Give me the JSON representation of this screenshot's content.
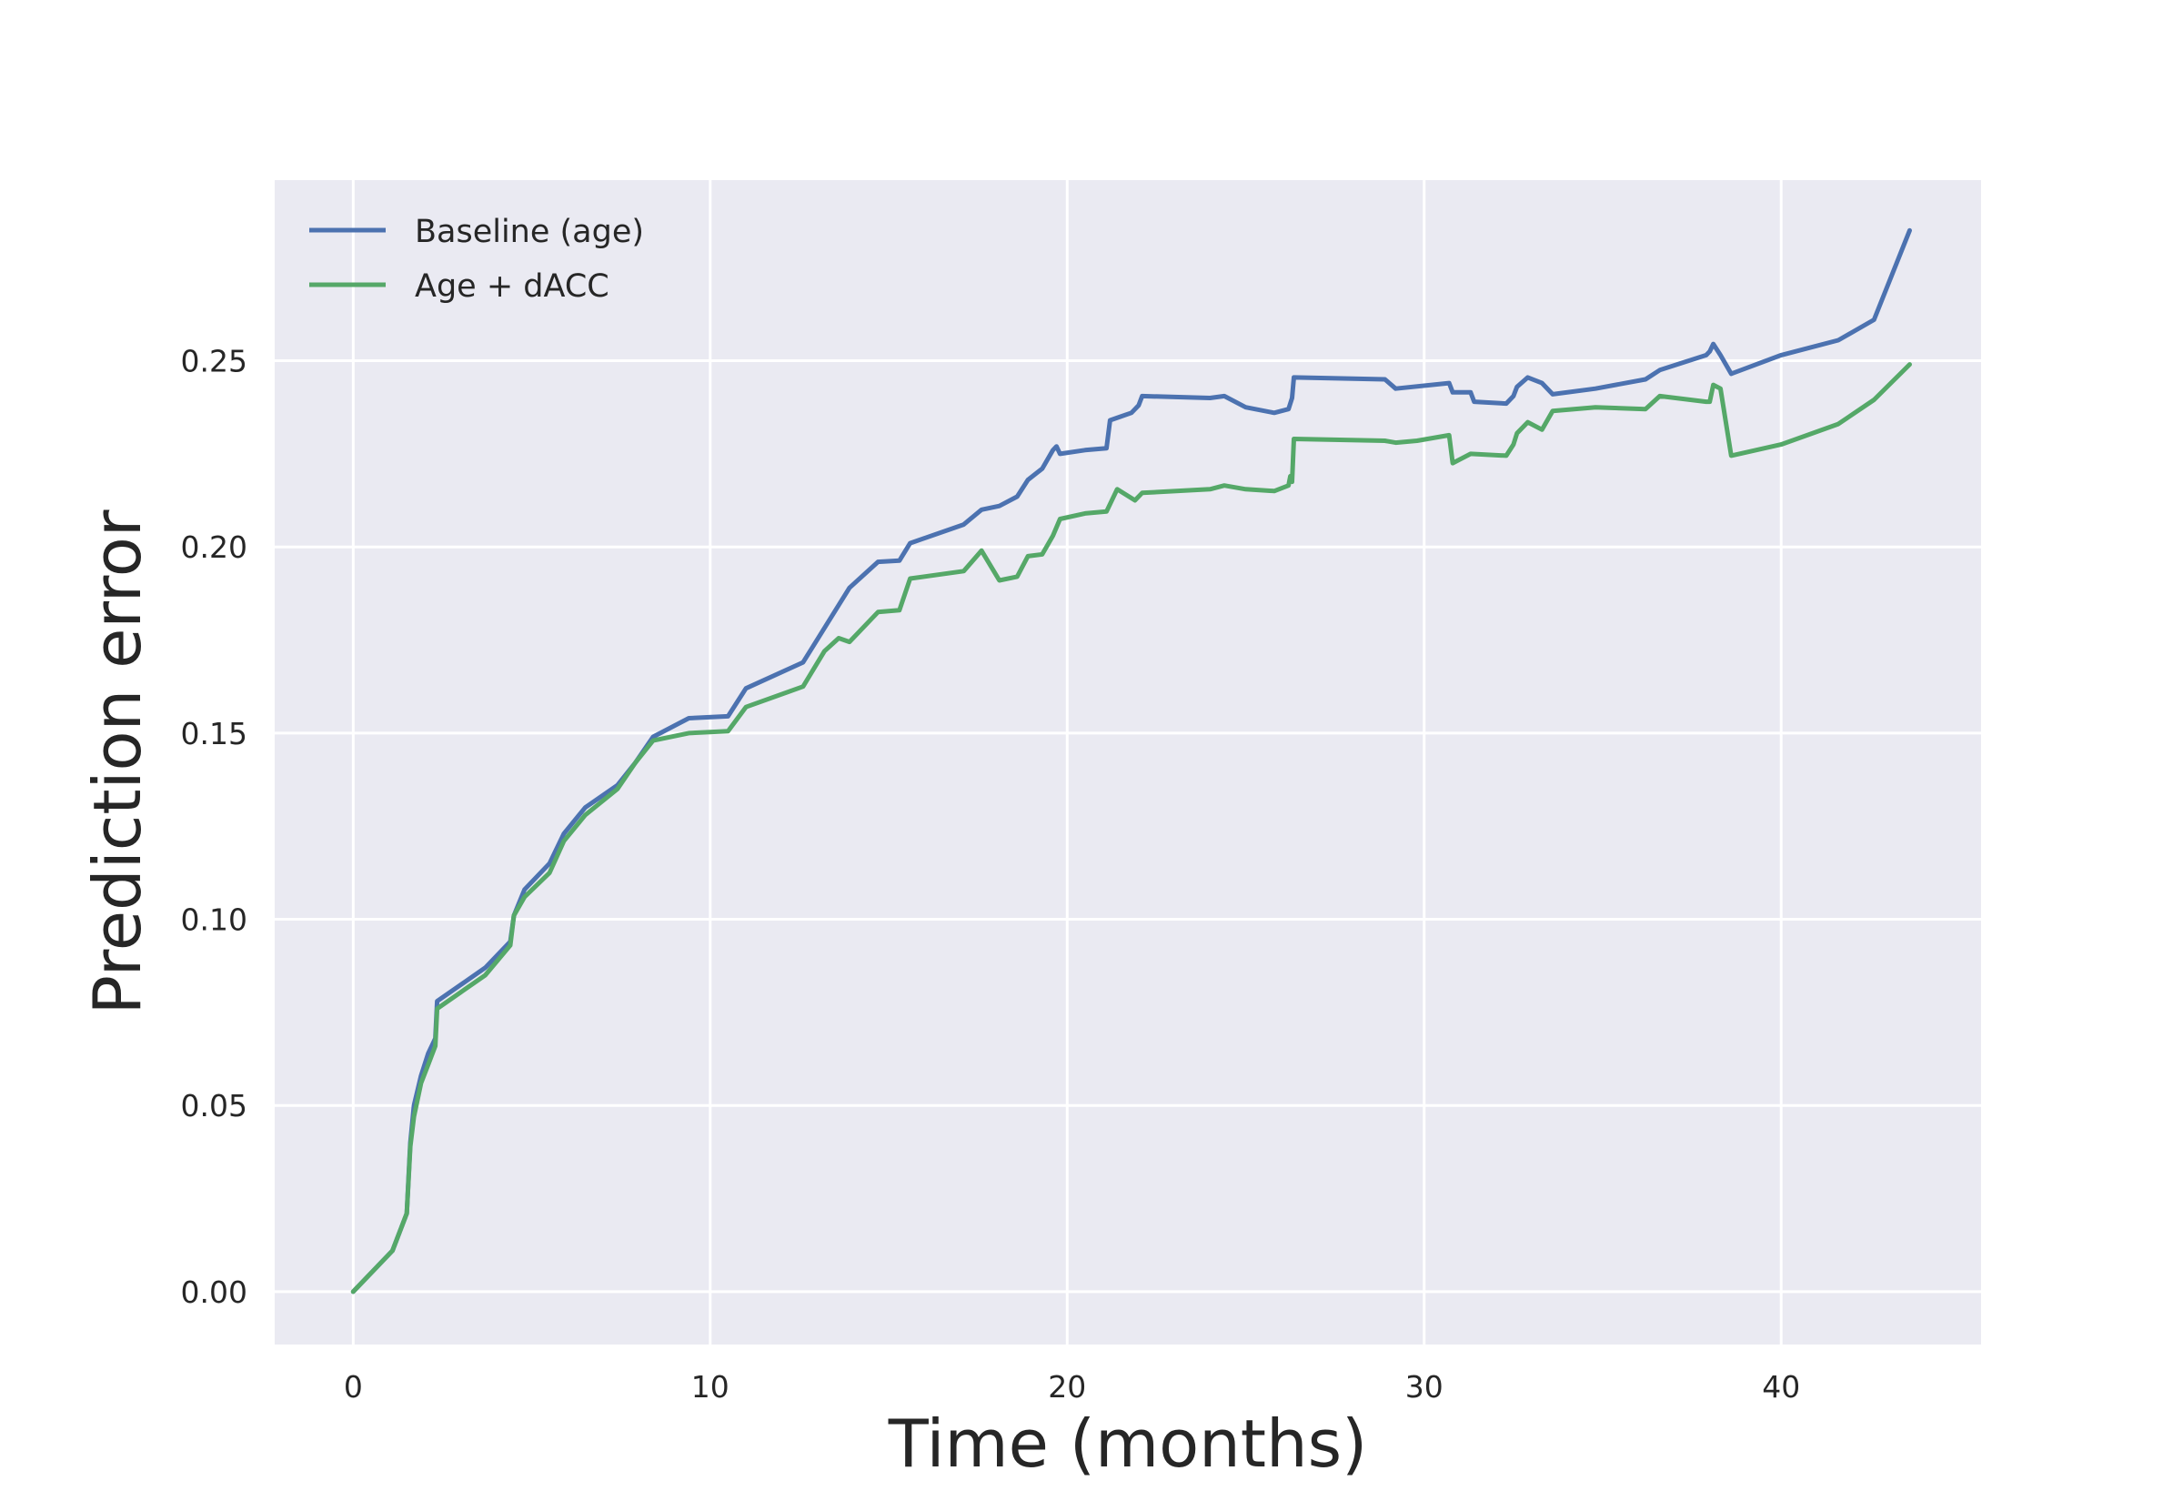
{
  "chart_data": {
    "type": "line",
    "title": "",
    "xlabel": "Time (months)",
    "ylabel": "Prediction error",
    "xlim": [
      -2.2,
      45.6
    ],
    "ylim": [
      -0.0142,
      0.2985
    ],
    "x_ticks": [
      0,
      10,
      20,
      30,
      40
    ],
    "x_tick_labels": [
      "0",
      "10",
      "20",
      "30",
      "40"
    ],
    "y_ticks": [
      0.0,
      0.05,
      0.1,
      0.15,
      0.2,
      0.25
    ],
    "y_tick_labels": [
      "0.00",
      "0.05",
      "0.10",
      "0.15",
      "0.20",
      "0.25"
    ],
    "grid": true,
    "legend_position": "top-left",
    "background_color": "#eaeaf2",
    "series": [
      {
        "name": "Baseline (age)",
        "color": "#4c72b0",
        "points": [
          [
            0.0,
            0.0
          ],
          [
            1.1,
            0.011
          ],
          [
            1.5,
            0.021
          ],
          [
            1.6,
            0.04
          ],
          [
            1.7,
            0.05
          ],
          [
            1.9,
            0.058
          ],
          [
            2.1,
            0.064
          ],
          [
            2.3,
            0.068
          ],
          [
            2.35,
            0.078
          ],
          [
            3.7,
            0.087
          ],
          [
            4.4,
            0.094
          ],
          [
            4.5,
            0.101
          ],
          [
            4.8,
            0.108
          ],
          [
            5.5,
            0.115
          ],
          [
            5.9,
            0.123
          ],
          [
            6.5,
            0.13
          ],
          [
            7.4,
            0.136
          ],
          [
            7.9,
            0.142
          ],
          [
            8.4,
            0.149
          ],
          [
            9.4,
            0.154
          ],
          [
            10.5,
            0.1545
          ],
          [
            11.0,
            0.162
          ],
          [
            12.6,
            0.169
          ],
          [
            13.9,
            0.189
          ],
          [
            14.7,
            0.196
          ],
          [
            15.3,
            0.1963
          ],
          [
            15.6,
            0.201
          ],
          [
            17.1,
            0.206
          ],
          [
            17.6,
            0.21
          ],
          [
            18.1,
            0.211
          ],
          [
            18.6,
            0.2135
          ],
          [
            18.9,
            0.218
          ],
          [
            19.3,
            0.221
          ],
          [
            19.6,
            0.226
          ],
          [
            19.7,
            0.227
          ],
          [
            19.8,
            0.225
          ],
          [
            20.5,
            0.226
          ],
          [
            21.1,
            0.2265
          ],
          [
            21.2,
            0.234
          ],
          [
            21.5,
            0.235
          ],
          [
            21.8,
            0.236
          ],
          [
            22.0,
            0.238
          ],
          [
            22.1,
            0.2405
          ],
          [
            24.0,
            0.24
          ],
          [
            24.4,
            0.2405
          ],
          [
            25.0,
            0.2375
          ],
          [
            25.8,
            0.236
          ],
          [
            26.2,
            0.237
          ],
          [
            26.3,
            0.24
          ],
          [
            26.35,
            0.2455
          ],
          [
            28.9,
            0.245
          ],
          [
            29.2,
            0.2425
          ],
          [
            30.7,
            0.244
          ],
          [
            30.8,
            0.2415
          ],
          [
            31.3,
            0.2415
          ],
          [
            31.4,
            0.239
          ],
          [
            32.3,
            0.2385
          ],
          [
            32.5,
            0.2405
          ],
          [
            32.6,
            0.243
          ],
          [
            32.9,
            0.2455
          ],
          [
            33.3,
            0.244
          ],
          [
            33.6,
            0.241
          ],
          [
            34.8,
            0.2425
          ],
          [
            36.2,
            0.245
          ],
          [
            36.6,
            0.2475
          ],
          [
            37.9,
            0.2515
          ],
          [
            38.0,
            0.2525
          ],
          [
            38.1,
            0.2545
          ],
          [
            38.3,
            0.2515
          ],
          [
            38.6,
            0.2465
          ],
          [
            40.0,
            0.2515
          ],
          [
            41.6,
            0.2555
          ],
          [
            42.6,
            0.261
          ],
          [
            43.6,
            0.285
          ]
        ]
      },
      {
        "name": "Age + dACC",
        "color": "#55a868",
        "points": [
          [
            0.0,
            0.0
          ],
          [
            1.1,
            0.011
          ],
          [
            1.5,
            0.021
          ],
          [
            1.6,
            0.039
          ],
          [
            1.7,
            0.047
          ],
          [
            1.9,
            0.056
          ],
          [
            2.1,
            0.061
          ],
          [
            2.3,
            0.066
          ],
          [
            2.35,
            0.076
          ],
          [
            3.7,
            0.085
          ],
          [
            4.4,
            0.093
          ],
          [
            4.5,
            0.101
          ],
          [
            4.8,
            0.106
          ],
          [
            5.5,
            0.1125
          ],
          [
            5.9,
            0.121
          ],
          [
            6.5,
            0.128
          ],
          [
            7.4,
            0.135
          ],
          [
            7.9,
            0.142
          ],
          [
            8.4,
            0.148
          ],
          [
            9.4,
            0.15
          ],
          [
            10.5,
            0.1505
          ],
          [
            11.0,
            0.157
          ],
          [
            12.6,
            0.1625
          ],
          [
            13.2,
            0.172
          ],
          [
            13.6,
            0.1755
          ],
          [
            13.9,
            0.1745
          ],
          [
            14.7,
            0.1825
          ],
          [
            15.3,
            0.183
          ],
          [
            15.6,
            0.1915
          ],
          [
            17.1,
            0.1935
          ],
          [
            17.6,
            0.199
          ],
          [
            18.1,
            0.191
          ],
          [
            18.6,
            0.192
          ],
          [
            18.9,
            0.1975
          ],
          [
            19.3,
            0.198
          ],
          [
            19.6,
            0.203
          ],
          [
            19.8,
            0.2075
          ],
          [
            20.5,
            0.209
          ],
          [
            21.1,
            0.2095
          ],
          [
            21.4,
            0.2155
          ],
          [
            21.9,
            0.2125
          ],
          [
            22.1,
            0.2145
          ],
          [
            24.0,
            0.2155
          ],
          [
            24.4,
            0.2165
          ],
          [
            25.0,
            0.2155
          ],
          [
            25.8,
            0.215
          ],
          [
            26.2,
            0.2165
          ],
          [
            26.25,
            0.219
          ],
          [
            26.3,
            0.2175
          ],
          [
            26.35,
            0.229
          ],
          [
            28.9,
            0.2285
          ],
          [
            29.2,
            0.228
          ],
          [
            29.8,
            0.2285
          ],
          [
            30.7,
            0.23
          ],
          [
            30.8,
            0.2225
          ],
          [
            31.3,
            0.225
          ],
          [
            32.3,
            0.2245
          ],
          [
            32.5,
            0.2275
          ],
          [
            32.6,
            0.2305
          ],
          [
            32.9,
            0.2335
          ],
          [
            33.3,
            0.2315
          ],
          [
            33.6,
            0.2365
          ],
          [
            34.8,
            0.2375
          ],
          [
            36.2,
            0.237
          ],
          [
            36.6,
            0.2405
          ],
          [
            37.9,
            0.239
          ],
          [
            38.0,
            0.239
          ],
          [
            38.1,
            0.2435
          ],
          [
            38.3,
            0.2425
          ],
          [
            38.6,
            0.2245
          ],
          [
            40.0,
            0.2275
          ],
          [
            41.6,
            0.233
          ],
          [
            42.6,
            0.2395
          ],
          [
            43.6,
            0.249
          ]
        ]
      }
    ]
  }
}
